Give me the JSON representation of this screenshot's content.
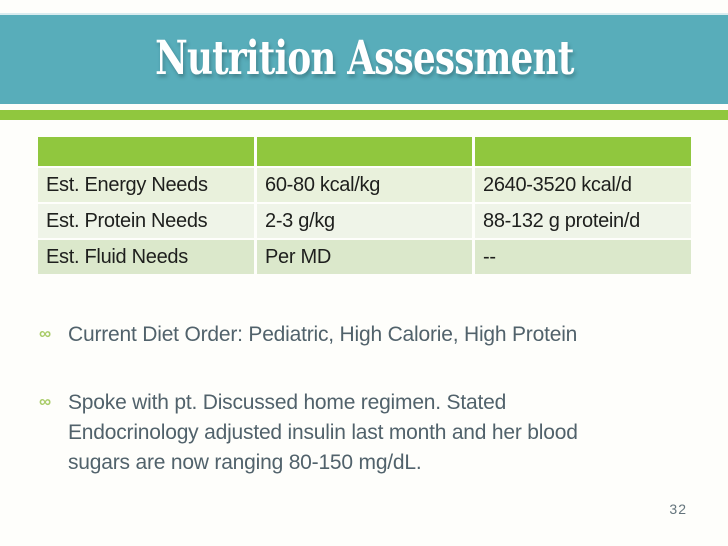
{
  "slide": {
    "title": "Nutrition Assessment",
    "page_number": "32"
  },
  "table": {
    "header": [
      "",
      "",
      ""
    ],
    "rows": [
      [
        "Est. Energy Needs",
        "60-80 kcal/kg",
        "2640-3520 kcal/d"
      ],
      [
        "Est. Protein Needs",
        "2-3 g/kg",
        "88-132 g protein/d"
      ],
      [
        "Est. Fluid Needs",
        "Per MD",
        "--"
      ]
    ]
  },
  "bullets": [
    {
      "marker": "∞",
      "lines": [
        "Current Diet Order: Pediatric, High Calorie, High Protein"
      ]
    },
    {
      "marker": "∞",
      "lines": [
        "Spoke with pt. Discussed home regimen. Stated",
        "Endocrinology adjusted insulin last month and her blood",
        "sugars are now ranging 80-150 mg/dL."
      ]
    }
  ],
  "colors": {
    "teal_band": "#58ADBA",
    "accent_green": "#90C73E",
    "row_tint_1": "#E9F1DC",
    "row_tint_2": "#EFF4E8",
    "row_tint_3": "#DBE8CB",
    "body_text": "#51626B",
    "table_text": "#1E1F1D",
    "page_number_text": "#64747C"
  }
}
